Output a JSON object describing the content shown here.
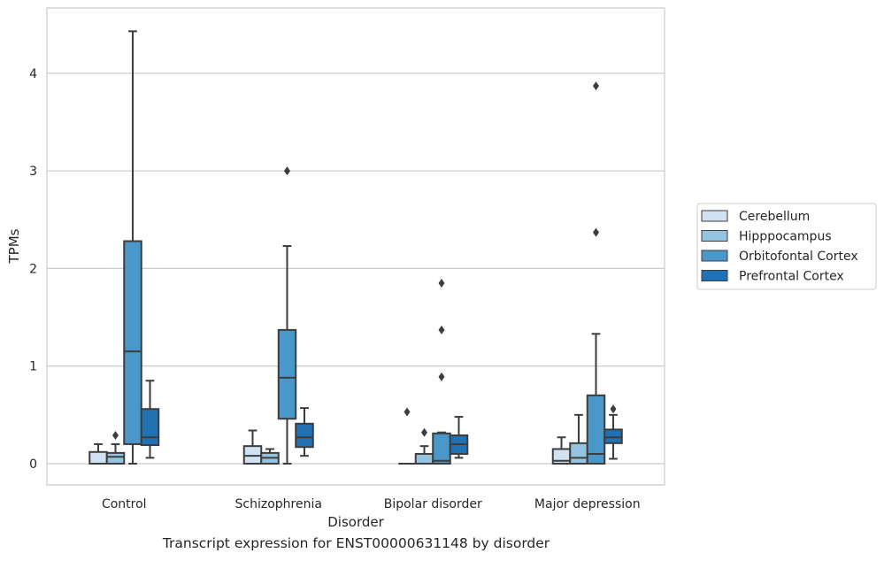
{
  "caption": "Transcript expression for ENST00000631148 by disorder",
  "chart_data": {
    "type": "box",
    "xlabel": "Disorder",
    "ylabel": "TPMs",
    "ylim": [
      -0.22,
      4.68
    ],
    "yticks": [
      0,
      1,
      2,
      3,
      4
    ],
    "grid": "horizontal",
    "legend_position": "right",
    "categories": [
      "Control",
      "Schizophrenia",
      "Bipolar disorder",
      "Major depression"
    ],
    "series": [
      {
        "name": "Cerebellum",
        "color": "#d0e1f2",
        "boxes": [
          {
            "whislo": 0.0,
            "q1": 0.0,
            "med": 0.0,
            "q3": 0.12,
            "whishi": 0.2,
            "fliers": []
          },
          {
            "whislo": 0.0,
            "q1": 0.0,
            "med": 0.08,
            "q3": 0.18,
            "whishi": 0.34,
            "fliers": []
          },
          {
            "whislo": 0.0,
            "q1": 0.0,
            "med": 0.0,
            "q3": 0.0,
            "whishi": 0.0,
            "fliers": [
              0.53
            ]
          },
          {
            "whislo": 0.0,
            "q1": 0.0,
            "med": 0.03,
            "q3": 0.15,
            "whishi": 0.27,
            "fliers": []
          }
        ]
      },
      {
        "name": "Hipppocampus",
        "color": "#94c4df",
        "boxes": [
          {
            "whislo": 0.0,
            "q1": 0.0,
            "med": 0.07,
            "q3": 0.11,
            "whishi": 0.2,
            "fliers": [
              0.29
            ]
          },
          {
            "whislo": 0.0,
            "q1": 0.0,
            "med": 0.06,
            "q3": 0.11,
            "whishi": 0.15,
            "fliers": []
          },
          {
            "whislo": 0.0,
            "q1": 0.0,
            "med": 0.0,
            "q3": 0.1,
            "whishi": 0.18,
            "fliers": [
              0.32
            ]
          },
          {
            "whislo": 0.0,
            "q1": 0.0,
            "med": 0.06,
            "q3": 0.21,
            "whishi": 0.5,
            "fliers": []
          }
        ]
      },
      {
        "name": "Orbitofontal Cortex",
        "color": "#4a98c9",
        "boxes": [
          {
            "whislo": 0.0,
            "q1": 0.2,
            "med": 1.15,
            "q3": 2.28,
            "whishi": 4.43,
            "fliers": []
          },
          {
            "whislo": 0.0,
            "q1": 0.46,
            "med": 0.88,
            "q3": 1.37,
            "whishi": 2.23,
            "fliers": [
              3.0
            ]
          },
          {
            "whislo": 0.0,
            "q1": 0.0,
            "med": 0.03,
            "q3": 0.31,
            "whishi": 0.32,
            "fliers": [
              0.89,
              1.37,
              1.85
            ]
          },
          {
            "whislo": 0.0,
            "q1": 0.0,
            "med": 0.1,
            "q3": 0.7,
            "whishi": 1.33,
            "fliers": [
              2.37,
              3.87
            ]
          }
        ]
      },
      {
        "name": "Prefrontal Cortex",
        "color": "#2171b5",
        "boxes": [
          {
            "whislo": 0.06,
            "q1": 0.19,
            "med": 0.27,
            "q3": 0.56,
            "whishi": 0.85,
            "fliers": []
          },
          {
            "whislo": 0.08,
            "q1": 0.17,
            "med": 0.27,
            "q3": 0.41,
            "whishi": 0.57,
            "fliers": []
          },
          {
            "whislo": 0.06,
            "q1": 0.1,
            "med": 0.2,
            "q3": 0.29,
            "whishi": 0.48,
            "fliers": []
          },
          {
            "whislo": 0.05,
            "q1": 0.21,
            "med": 0.27,
            "q3": 0.35,
            "whishi": 0.5,
            "fliers": [
              0.56
            ]
          }
        ]
      }
    ]
  }
}
